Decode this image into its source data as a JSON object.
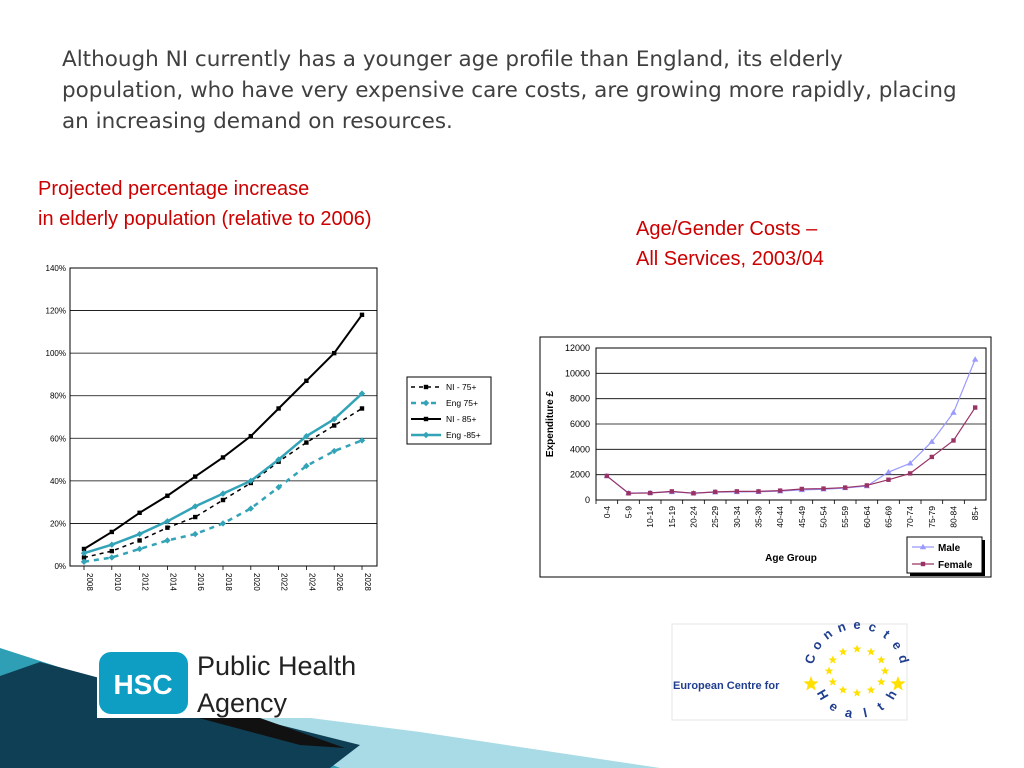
{
  "slide": {
    "title": "Although NI currently has a younger age profile than England, its elderly population, who have very expensive care costs, are growing more rapidly, placing an increasing demand on resources.",
    "caption_left": [
      "Projected percentage increase",
      "in elderly population (relative to 2006)"
    ],
    "caption_right": [
      "Age/Gender Costs –",
      "All Services, 2003/04"
    ]
  },
  "logos": {
    "hsc_badge": "HSC",
    "hsc_name": [
      "Public Health",
      "Agency"
    ],
    "ecch_text": "European Centre for",
    "ecch_ring_letters": [
      "C",
      "o",
      "n",
      "n",
      "e",
      "c",
      "t",
      "e",
      "d",
      "H",
      "e",
      "a",
      "l",
      "t",
      "h"
    ]
  },
  "colors": {
    "caption": "#cc0000",
    "teal": "#33a3b8",
    "male": "#9999ff",
    "female": "#993366",
    "eu_blue": "#1f3e8f",
    "eu_star": "#ffe000"
  },
  "chart_data": [
    {
      "type": "line",
      "x": [
        "2008",
        "2010",
        "2012",
        "2014",
        "2016",
        "2018",
        "2020",
        "2022",
        "2024",
        "2026",
        "2028"
      ],
      "ylim": [
        0,
        140
      ],
      "yticks": [
        "0%",
        "20%",
        "40%",
        "60%",
        "80%",
        "100%",
        "120%",
        "140%"
      ],
      "grid": true,
      "legend": "right",
      "series": [
        {
          "name": "NI - 75+",
          "values": [
            4,
            7,
            12,
            18,
            23,
            31,
            39,
            49,
            58,
            66,
            74
          ]
        },
        {
          "name": "Eng 75+",
          "values": [
            2,
            4,
            8,
            12,
            15,
            20,
            27,
            37,
            47,
            54,
            59
          ]
        },
        {
          "name": "NI - 85+",
          "values": [
            8,
            16,
            25,
            33,
            42,
            51,
            61,
            74,
            87,
            100,
            118
          ]
        },
        {
          "name": "Eng -85+",
          "values": [
            6,
            10,
            15,
            21,
            28,
            34,
            40,
            50,
            61,
            69,
            81
          ]
        }
      ]
    },
    {
      "type": "line",
      "x": [
        "0-4",
        "5-9",
        "10-14",
        "15-19",
        "20-24",
        "25-29",
        "30-34",
        "35-39",
        "40-44",
        "45-49",
        "50-54",
        "55-59",
        "60-64",
        "65-69",
        "70-74",
        "75-79",
        "80-84",
        "85+"
      ],
      "xlabel": "Age Group",
      "ylabel": "Expenditure £",
      "ylim": [
        0,
        12000
      ],
      "yticks": [
        "0",
        "2000",
        "4000",
        "6000",
        "8000",
        "10000",
        "12000"
      ],
      "grid": true,
      "legend": "bottom-right",
      "series": [
        {
          "name": "Male",
          "values": [
            1900,
            550,
            570,
            640,
            550,
            620,
            640,
            650,
            700,
            800,
            850,
            950,
            1100,
            2200,
            2900,
            4600,
            6900,
            11100
          ]
        },
        {
          "name": "Female",
          "values": [
            1900,
            530,
            550,
            680,
            530,
            640,
            680,
            680,
            740,
            870,
            900,
            980,
            1150,
            1600,
            2100,
            3400,
            4700,
            7300
          ]
        }
      ]
    }
  ]
}
